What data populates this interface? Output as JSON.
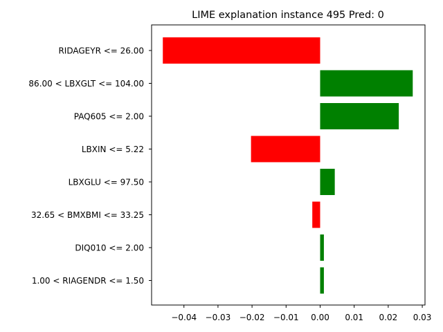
{
  "chart_data": {
    "type": "bar",
    "orientation": "horizontal",
    "title": "LIME explanation instance 495 Pred: 0",
    "xlabel": "",
    "ylabel": "",
    "xlim": [
      -0.0495,
      0.0308
    ],
    "xticks": [
      -0.04,
      -0.03,
      -0.02,
      -0.01,
      0.0,
      0.01,
      0.02,
      0.03
    ],
    "xtick_labels": [
      "−0.04",
      "−0.03",
      "−0.02",
      "−0.01",
      "0.00",
      "0.01",
      "0.02",
      "0.03"
    ],
    "grid": false,
    "legend": "none",
    "colors": {
      "positive": "#008000",
      "negative": "#ff0000"
    },
    "categories": [
      "RIDAGEYR <= 26.00",
      "86.00 < LBXGLT <= 104.00",
      "PAQ605 <= 2.00",
      "LBXIN <= 5.22",
      "LBXGLU <= 97.50",
      "32.65 < BMXBMI <= 33.25",
      "DIQ010 <= 2.00",
      "1.00 < RIAGENDR <= 1.50"
    ],
    "values": [
      -0.0462,
      0.0272,
      0.0231,
      -0.0203,
      0.0043,
      -0.0023,
      0.0011,
      0.0011
    ]
  }
}
